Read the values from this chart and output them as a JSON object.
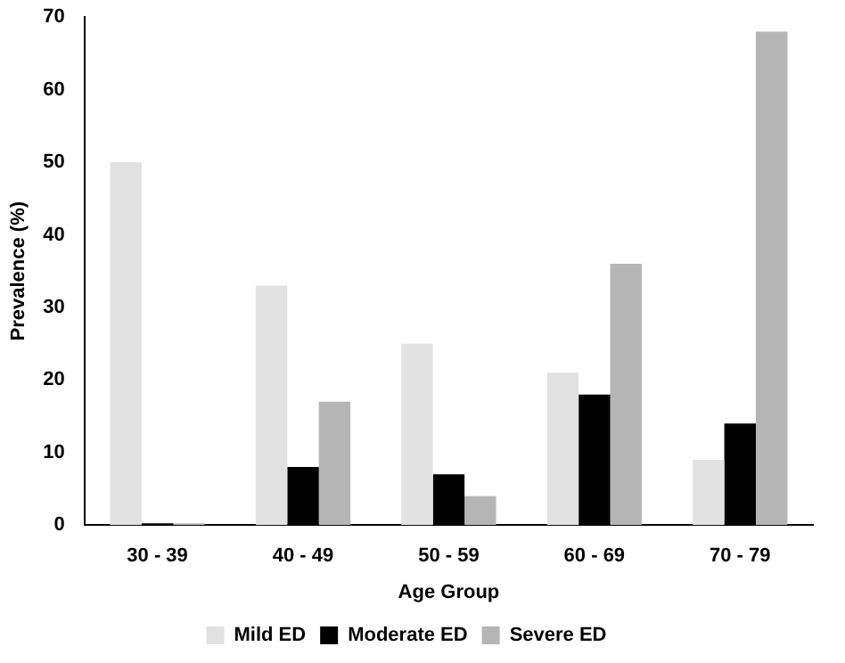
{
  "chart_data": {
    "type": "bar",
    "xlabel": "Age Group",
    "ylabel": "Prevalence (%)",
    "categories": [
      "30 - 39",
      "40 - 49",
      "50 - 59",
      "60 - 69",
      "70 - 79"
    ],
    "series": [
      {
        "name": "Mild ED",
        "color": "#e2e2e2",
        "values": [
          50,
          33,
          25,
          21,
          9
        ]
      },
      {
        "name": "Moderate ED",
        "color": "#000000",
        "values": [
          0,
          8,
          7,
          18,
          14
        ]
      },
      {
        "name": "Severe ED",
        "color": "#b5b5b5",
        "values": [
          0,
          17,
          4,
          36,
          68
        ]
      }
    ],
    "ylim": [
      0,
      70
    ],
    "yticks": [
      0,
      10,
      20,
      30,
      40,
      50,
      60,
      70
    ],
    "grid": false,
    "legend": "bottom"
  }
}
